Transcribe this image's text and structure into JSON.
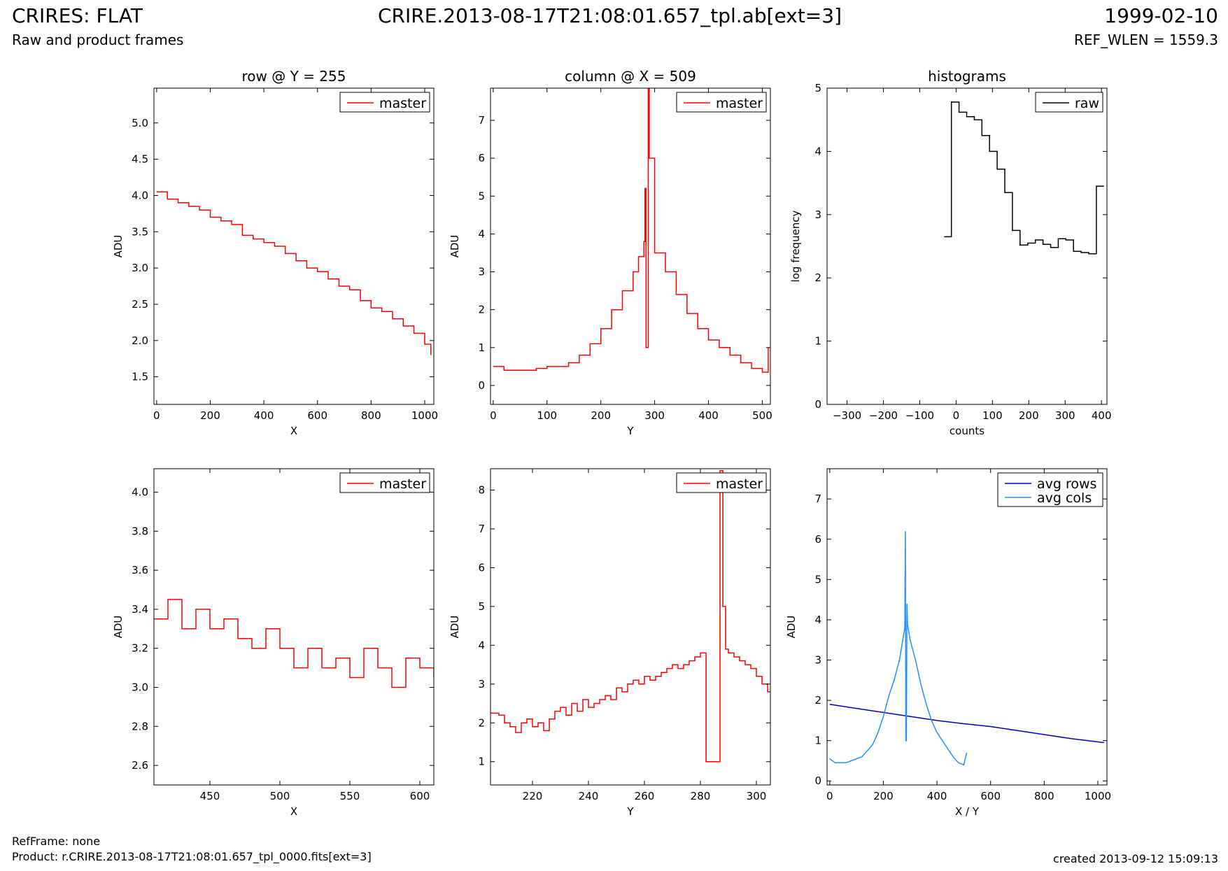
{
  "header": {
    "title_left": "CRIRES: FLAT",
    "subtitle_left": "Raw and product frames",
    "title_center": "CRIRE.2013-08-17T21:08:01.657_tpl.ab[ext=3]",
    "title_right": "1999-02-10",
    "subtitle_right": "REF_WLEN = 1559.3"
  },
  "footer": {
    "refframe": "RefFrame: none",
    "product": "Product: r.CRIRE.2013-08-17T21:08:01.657_tpl_0000.fits[ext=3]",
    "created": "created 2013-09-12 15:09:13"
  },
  "colors": {
    "red": "#ff0000",
    "black": "#000000",
    "blue": "#0000cc",
    "lightblue": "#1e90ff"
  },
  "chart_data": [
    {
      "id": "row-plot",
      "type": "line",
      "title": "row @ Y = 255",
      "xlabel": "X",
      "ylabel": "ADU",
      "xlim": [
        -10,
        1034
      ],
      "ylim": [
        1.12,
        5.48
      ],
      "xticks": [
        0,
        200,
        400,
        600,
        800,
        1000
      ],
      "yticks": [
        1.5,
        2.0,
        2.5,
        3.0,
        3.5,
        4.0,
        4.5,
        5.0
      ],
      "ytick_decimals": 1,
      "legend": {
        "position": "top-right"
      },
      "series": [
        {
          "name": "master",
          "color": "#ff0000",
          "step": true,
          "x": [
            0,
            40,
            80,
            120,
            160,
            200,
            240,
            280,
            320,
            360,
            400,
            440,
            480,
            520,
            560,
            600,
            640,
            680,
            720,
            760,
            800,
            840,
            880,
            920,
            960,
            1000,
            1023
          ],
          "y": [
            4.05,
            3.95,
            3.9,
            3.85,
            3.8,
            3.7,
            3.65,
            3.6,
            3.45,
            3.4,
            3.35,
            3.3,
            3.2,
            3.1,
            3.0,
            2.95,
            2.85,
            2.75,
            2.7,
            2.55,
            2.45,
            2.4,
            2.3,
            2.2,
            2.1,
            1.95,
            1.8
          ]
        }
      ]
    },
    {
      "id": "column-plot",
      "type": "line",
      "title": "column @ X = 509",
      "xlabel": "Y",
      "ylabel": "ADU",
      "xlim": [
        -5,
        515
      ],
      "ylim": [
        -0.5,
        7.85
      ],
      "xticks": [
        0,
        100,
        200,
        300,
        400,
        500
      ],
      "yticks": [
        0,
        1,
        2,
        3,
        4,
        5,
        6,
        7
      ],
      "ytick_decimals": 0,
      "legend": {
        "position": "top-right"
      },
      "series": [
        {
          "name": "master",
          "color": "#ff0000",
          "step": true,
          "x": [
            0,
            20,
            40,
            60,
            80,
            100,
            120,
            140,
            160,
            180,
            200,
            220,
            240,
            260,
            270,
            280,
            282,
            284,
            286,
            288,
            290,
            300,
            320,
            340,
            360,
            380,
            400,
            420,
            440,
            460,
            480,
            500,
            511
          ],
          "y": [
            0.5,
            0.4,
            0.4,
            0.4,
            0.45,
            0.5,
            0.5,
            0.6,
            0.8,
            1.1,
            1.5,
            2.0,
            2.5,
            3.0,
            3.4,
            3.8,
            5.2,
            1.0,
            1.0,
            7.9,
            6.0,
            3.5,
            3.0,
            2.4,
            1.9,
            1.5,
            1.2,
            1.0,
            0.8,
            0.6,
            0.45,
            0.35,
            1.0
          ]
        }
      ]
    },
    {
      "id": "histogram-plot",
      "type": "line",
      "title": "histograms",
      "xlabel": "counts",
      "ylabel": "log frequency",
      "xlim": [
        -355,
        415
      ],
      "ylim": [
        0,
        5
      ],
      "xticks": [
        -300,
        -200,
        -100,
        0,
        100,
        200,
        300,
        400
      ],
      "yticks": [
        0,
        1,
        2,
        3,
        4,
        5
      ],
      "ytick_decimals": 0,
      "legend": {
        "position": "top-right"
      },
      "series": [
        {
          "name": "raw",
          "color": "#000000",
          "step": true,
          "x": [
            -33,
            -13,
            8,
            29,
            50,
            71,
            92,
            113,
            134,
            155,
            176,
            197,
            218,
            239,
            260,
            281,
            302,
            323,
            344,
            365,
            386,
            407
          ],
          "y": [
            2.65,
            4.78,
            4.62,
            4.55,
            4.5,
            4.25,
            4.0,
            3.72,
            3.35,
            2.75,
            2.52,
            2.55,
            2.6,
            2.53,
            2.48,
            2.62,
            2.6,
            2.42,
            2.4,
            2.38,
            3.45,
            3.45
          ]
        }
      ]
    },
    {
      "id": "row-zoom-plot",
      "type": "line",
      "title": "",
      "xlabel": "X",
      "ylabel": "ADU",
      "xlim": [
        410,
        610
      ],
      "ylim": [
        2.5,
        4.12
      ],
      "xticks": [
        450,
        500,
        550,
        600
      ],
      "yticks": [
        2.6,
        2.8,
        3.0,
        3.2,
        3.4,
        3.6,
        3.8,
        4.0
      ],
      "ytick_decimals": 1,
      "legend": {
        "position": "top-right"
      },
      "series": [
        {
          "name": "master",
          "color": "#ff0000",
          "step": true,
          "x": [
            410,
            420,
            430,
            440,
            450,
            460,
            470,
            480,
            490,
            500,
            510,
            520,
            530,
            540,
            550,
            560,
            570,
            580,
            590,
            600,
            610
          ],
          "y": [
            3.35,
            3.45,
            3.3,
            3.4,
            3.3,
            3.35,
            3.25,
            3.2,
            3.3,
            3.2,
            3.1,
            3.2,
            3.1,
            3.15,
            3.05,
            3.2,
            3.1,
            3.0,
            3.15,
            3.1,
            3.05
          ]
        }
      ]
    },
    {
      "id": "column-zoom-plot",
      "type": "line",
      "title": "",
      "xlabel": "Y",
      "ylabel": "ADU",
      "xlim": [
        205,
        305
      ],
      "ylim": [
        0.4,
        8.55
      ],
      "xticks": [
        220,
        240,
        260,
        280,
        300
      ],
      "yticks": [
        1,
        2,
        3,
        4,
        5,
        6,
        7,
        8
      ],
      "ytick_decimals": 0,
      "legend": {
        "position": "top-right"
      },
      "series": [
        {
          "name": "master",
          "color": "#ff0000",
          "step": true,
          "x": [
            205,
            208,
            210,
            212,
            214,
            216,
            218,
            220,
            222,
            224,
            226,
            228,
            230,
            232,
            234,
            236,
            238,
            240,
            242,
            244,
            246,
            248,
            250,
            252,
            254,
            256,
            258,
            260,
            262,
            264,
            266,
            268,
            270,
            272,
            274,
            276,
            278,
            280,
            282,
            287,
            288,
            289,
            290,
            292,
            294,
            296,
            298,
            300,
            302,
            304,
            305
          ],
          "y": [
            2.25,
            2.2,
            2.0,
            1.9,
            1.75,
            2.0,
            2.1,
            1.9,
            2.0,
            1.8,
            2.1,
            2.3,
            2.4,
            2.2,
            2.5,
            2.3,
            2.6,
            2.4,
            2.5,
            2.6,
            2.7,
            2.6,
            2.9,
            2.8,
            3.0,
            3.1,
            3.0,
            3.2,
            3.1,
            3.2,
            3.3,
            3.4,
            3.5,
            3.4,
            3.5,
            3.6,
            3.7,
            3.8,
            1.0,
            8.5,
            5.0,
            3.9,
            3.8,
            3.7,
            3.6,
            3.5,
            3.4,
            3.2,
            3.0,
            2.8,
            2.8
          ]
        }
      ]
    },
    {
      "id": "averages-plot",
      "type": "line",
      "title": "",
      "xlabel": "X / Y",
      "ylabel": "ADU",
      "xlim": [
        -10,
        1034
      ],
      "ylim": [
        -0.1,
        7.75
      ],
      "xticks": [
        0,
        200,
        400,
        600,
        800,
        1000
      ],
      "yticks": [
        0,
        1,
        2,
        3,
        4,
        5,
        6,
        7
      ],
      "ytick_decimals": 0,
      "legend": {
        "position": "top-right"
      },
      "series": [
        {
          "name": "avg rows",
          "color": "#0000cc",
          "step": false,
          "x": [
            0,
            100,
            200,
            300,
            400,
            500,
            600,
            700,
            800,
            900,
            1023
          ],
          "y": [
            1.9,
            1.8,
            1.7,
            1.6,
            1.5,
            1.42,
            1.35,
            1.25,
            1.15,
            1.05,
            0.95
          ]
        },
        {
          "name": "avg cols",
          "color": "#1e90ff",
          "step": false,
          "x": [
            0,
            20,
            40,
            60,
            80,
            100,
            120,
            140,
            160,
            180,
            200,
            220,
            240,
            260,
            270,
            280,
            282,
            284,
            286,
            288,
            290,
            300,
            320,
            340,
            360,
            380,
            400,
            420,
            440,
            460,
            480,
            500,
            511
          ],
          "y": [
            0.55,
            0.45,
            0.45,
            0.45,
            0.5,
            0.55,
            0.6,
            0.75,
            0.9,
            1.2,
            1.6,
            2.1,
            2.5,
            3.0,
            3.4,
            3.8,
            6.2,
            1.0,
            1.0,
            4.4,
            3.9,
            3.5,
            3.0,
            2.4,
            1.9,
            1.5,
            1.2,
            1.0,
            0.8,
            0.6,
            0.45,
            0.4,
            0.7
          ]
        }
      ]
    }
  ]
}
